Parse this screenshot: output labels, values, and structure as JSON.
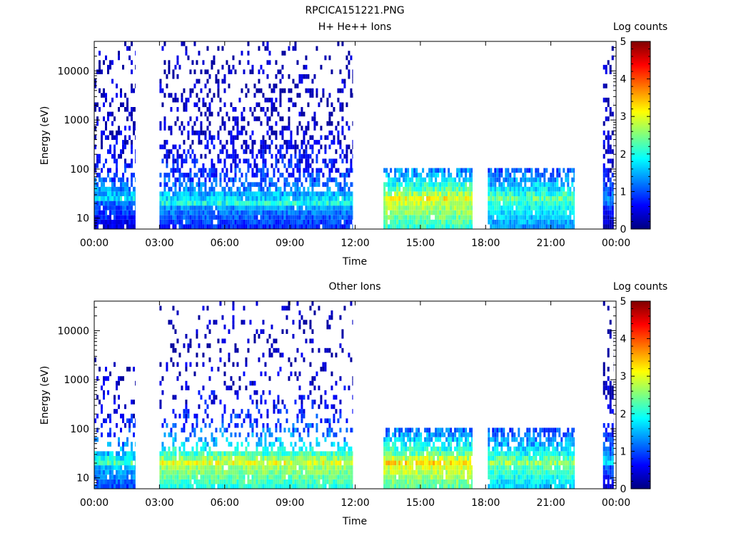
{
  "figure_title": "RPCICA151221.PNG",
  "chart_data": [
    {
      "type": "heatmap",
      "title": "H+ He++ Ions",
      "xlabel": "Time",
      "ylabel": "Energy (eV)",
      "colorbar_label": "Log counts",
      "y_scale": "log",
      "xlim_hours": [
        0,
        24
      ],
      "ylim": [
        6,
        40000
      ],
      "x_ticks": [
        "00:00",
        "03:00",
        "06:00",
        "09:00",
        "12:00",
        "15:00",
        "18:00",
        "21:00",
        "00:00"
      ],
      "y_ticks": [
        "10",
        "100",
        "1000",
        "10000"
      ],
      "colorbar_ticks": [
        "0",
        "1",
        "2",
        "3",
        "4",
        "5"
      ],
      "colorbar_range": [
        0,
        5
      ],
      "colormap": [
        "#00007f",
        "#0000ff",
        "#007fff",
        "#00ffff",
        "#7fff7f",
        "#ffff00",
        "#ff7f00",
        "#ff0000",
        "#7f0000"
      ],
      "segments": [
        {
          "start_hour": 0.0,
          "end_hour": 1.9,
          "max_energy": 40000,
          "peak_energy": 25,
          "peak_log": 1.6,
          "fill": 0.5
        },
        {
          "start_hour": 3.0,
          "end_hour": 11.9,
          "max_energy": 40000,
          "peak_energy": 20,
          "peak_log": 1.8,
          "fill": 0.6
        },
        {
          "start_hour": 13.3,
          "end_hour": 17.4,
          "max_energy": 100,
          "peak_energy": 22,
          "peak_log": 3.2,
          "fill": 0.9
        },
        {
          "start_hour": 18.1,
          "end_hour": 22.1,
          "max_energy": 100,
          "peak_energy": 22,
          "peak_log": 2.4,
          "fill": 0.85
        },
        {
          "start_hour": 23.4,
          "end_hour": 23.9,
          "max_energy": 40000,
          "peak_energy": 20,
          "peak_log": 1.2,
          "fill": 0.8
        }
      ]
    },
    {
      "type": "heatmap",
      "title": "Other Ions",
      "xlabel": "Time",
      "ylabel": "Energy (eV)",
      "colorbar_label": "Log counts",
      "y_scale": "log",
      "xlim_hours": [
        0,
        24
      ],
      "ylim": [
        6,
        40000
      ],
      "x_ticks": [
        "00:00",
        "03:00",
        "06:00",
        "09:00",
        "12:00",
        "15:00",
        "18:00",
        "21:00",
        "00:00"
      ],
      "y_ticks": [
        "10",
        "100",
        "1000",
        "10000"
      ],
      "colorbar_ticks": [
        "0",
        "1",
        "2",
        "3",
        "4",
        "5"
      ],
      "colorbar_range": [
        0,
        5
      ],
      "colormap": [
        "#00007f",
        "#0000ff",
        "#007fff",
        "#00ffff",
        "#7fff7f",
        "#ffff00",
        "#ff7f00",
        "#ff0000",
        "#7f0000"
      ],
      "segments": [
        {
          "start_hour": 0.0,
          "end_hour": 1.9,
          "max_energy": 3000,
          "peak_energy": 20,
          "peak_log": 2.0,
          "fill": 0.35
        },
        {
          "start_hour": 3.0,
          "end_hour": 11.9,
          "max_energy": 40000,
          "peak_energy": 18,
          "peak_log": 3.0,
          "fill": 0.35
        },
        {
          "start_hour": 13.3,
          "end_hour": 17.4,
          "max_energy": 100,
          "peak_energy": 18,
          "peak_log": 3.3,
          "fill": 0.9
        },
        {
          "start_hour": 18.1,
          "end_hour": 22.1,
          "max_energy": 100,
          "peak_energy": 18,
          "peak_log": 2.6,
          "fill": 0.85
        },
        {
          "start_hour": 23.4,
          "end_hour": 23.9,
          "max_energy": 40000,
          "peak_energy": 20,
          "peak_log": 1.5,
          "fill": 0.6
        }
      ]
    }
  ]
}
